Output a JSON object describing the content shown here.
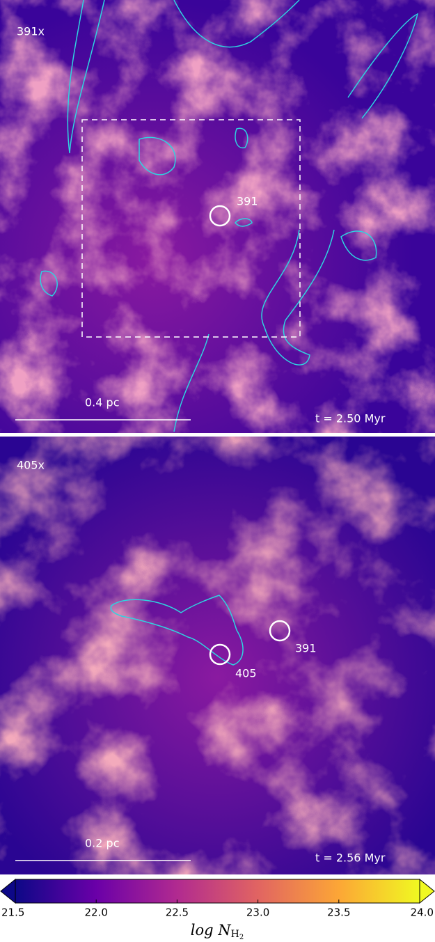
{
  "chart_data": {
    "type": "colorbar",
    "panels": [
      {
        "label": "391x",
        "sink_labels": [
          "391"
        ],
        "scale": "0.4 pc",
        "time": "t =  2.50 Myr"
      },
      {
        "label": "405x",
        "sink_labels": [
          "405",
          "391"
        ],
        "scale": "0.2 pc",
        "time": "t =  2.56 Myr"
      }
    ],
    "colorbar": {
      "lim": [
        21.5,
        24.0
      ],
      "ticks": [
        21.5,
        {
          "value": 22,
          "label": "22.0"
        },
        22.5,
        {
          "value": 23,
          "label": "23.0"
        },
        23.5,
        {
          "value": 24,
          "label": "24.0"
        }
      ],
      "label": [
        "log N",
        "H",
        "2"
      ],
      "colors": [
        "#0d0887",
        "#6a00a8",
        "#b12a90",
        "#e16462",
        "#fca636",
        "#f0f921"
      ]
    }
  }
}
